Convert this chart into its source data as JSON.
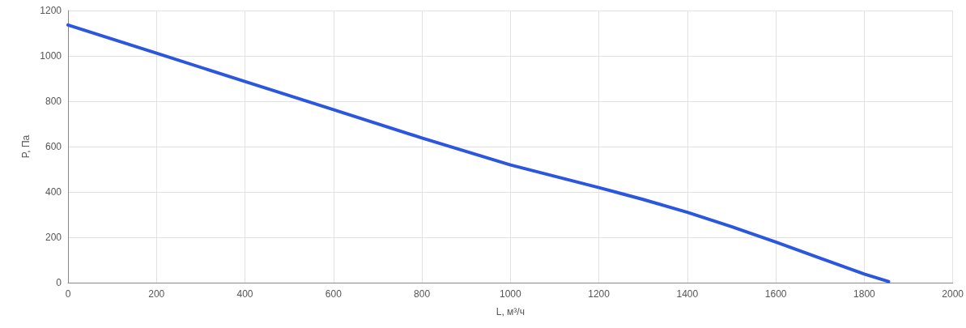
{
  "chart_data": {
    "type": "line",
    "xlabel": "L, м³/ч",
    "ylabel": "P, Па",
    "x": [
      0,
      200,
      400,
      600,
      800,
      1000,
      1200,
      1300,
      1400,
      1500,
      1600,
      1800,
      1855
    ],
    "series": [
      {
        "color": "#2a56e0",
        "values": [
          1136,
          1012,
          887,
          763,
          638,
          519,
          419,
          367,
          310,
          247,
          179,
          38,
          5
        ]
      }
    ],
    "xlim": [
      0,
      2000
    ],
    "xticks": [
      0,
      200,
      400,
      600,
      800,
      1000,
      1200,
      1400,
      1600,
      1800,
      2000
    ],
    "ylim": [
      0,
      1200
    ],
    "yticks": [
      0,
      200,
      400,
      600,
      800,
      1000,
      1200
    ],
    "grid": true,
    "marker": "none",
    "line_style": "solid"
  }
}
